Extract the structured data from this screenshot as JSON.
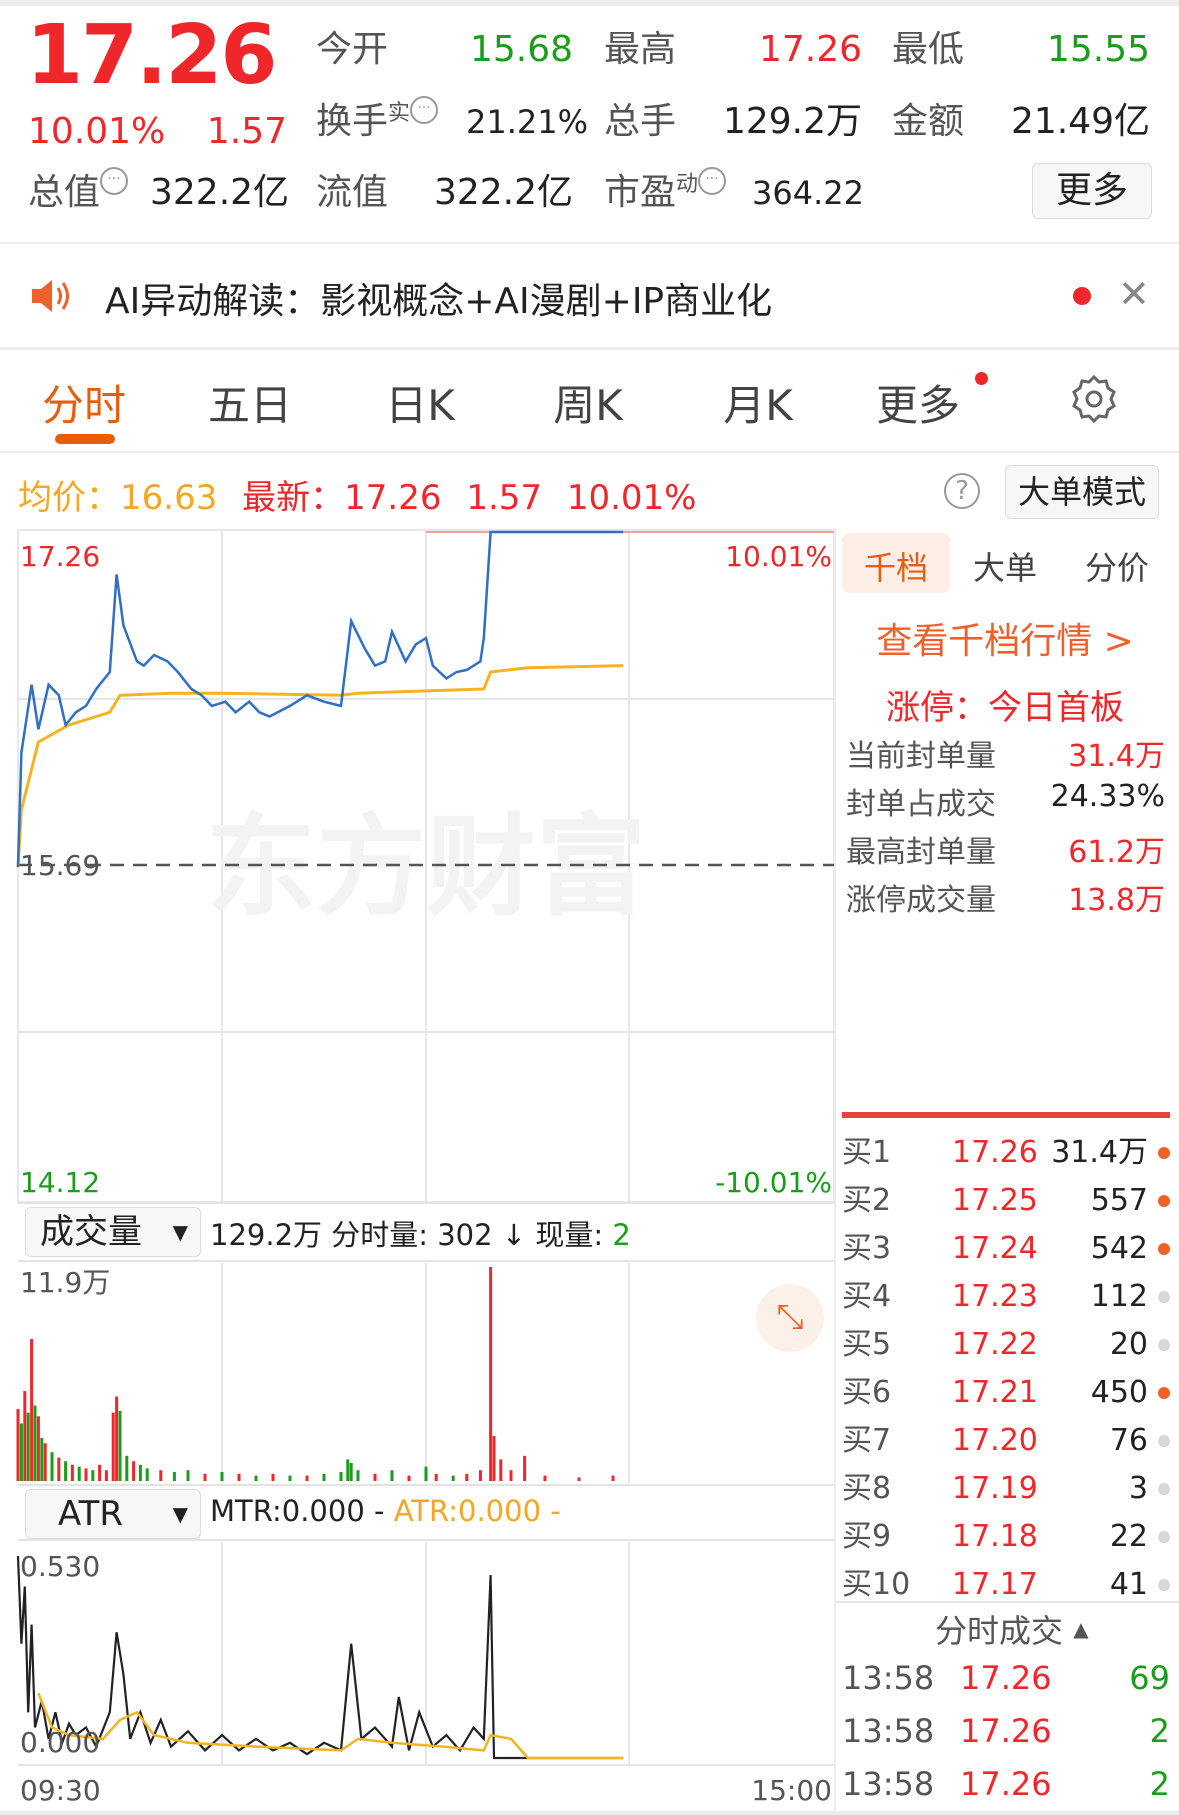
{
  "quote": {
    "price": "17.26",
    "change_pct": "10.01%",
    "change": "1.57",
    "fields": [
      {
        "label": "今开",
        "value": "15.68",
        "color": "green"
      },
      {
        "label": "最高",
        "value": "17.26",
        "color": "red"
      },
      {
        "label": "最低",
        "value": "15.55",
        "color": "green"
      },
      {
        "label": "换手",
        "sup": "实",
        "value": "21.21%",
        "color": "dark"
      },
      {
        "label": "总手",
        "value": "129.2万",
        "color": "dark"
      },
      {
        "label": "金额",
        "value": "21.49亿",
        "color": "dark"
      },
      {
        "label": "总值",
        "value": "322.2亿",
        "color": "dark"
      },
      {
        "label": "流值",
        "value": "322.2亿",
        "color": "dark"
      },
      {
        "label": "市盈",
        "sup": "动",
        "value": "364.22",
        "color": "dark"
      }
    ],
    "more_label": "更多"
  },
  "banner": {
    "text": "AI异动解读：影视概念+AI漫剧+IP商业化",
    "icon": "speaker-icon"
  },
  "tabs": [
    {
      "label": "分时",
      "active": true
    },
    {
      "label": "五日"
    },
    {
      "label": "日K"
    },
    {
      "label": "周K"
    },
    {
      "label": "月K"
    },
    {
      "label": "更多"
    }
  ],
  "info": {
    "avg_label": "均价：",
    "avg": "16.63",
    "latest_label": "最新：",
    "latest": "17.26",
    "chg": "1.57",
    "pct": "10.01%",
    "mode_label": "大单模式"
  },
  "colors": {
    "up": "#f0272a",
    "down": "#1a9e1a",
    "accent": "#e85d0c",
    "avg_line": "#f5b324",
    "price_line": "#2f6fc4"
  },
  "side": {
    "tabs": [
      "千档",
      "大单",
      "分价"
    ],
    "link": "查看千档行情 >",
    "limit_up": "涨停：今日首板",
    "stats": [
      {
        "label": "当前封单量",
        "value": "31.4万",
        "color": "red"
      },
      {
        "label": "封单占成交",
        "value": "24.33%",
        "color": "dark"
      },
      {
        "label": "最高封单量",
        "value": "61.2万",
        "color": "red"
      },
      {
        "label": "涨停成交量",
        "value": "13.8万",
        "color": "red"
      }
    ],
    "bids": [
      {
        "label": "买1",
        "price": "17.26",
        "vol": "31.4万",
        "dot": "orange"
      },
      {
        "label": "买2",
        "price": "17.25",
        "vol": "557",
        "dot": "orange"
      },
      {
        "label": "买3",
        "price": "17.24",
        "vol": "542",
        "dot": "orange"
      },
      {
        "label": "买4",
        "price": "17.23",
        "vol": "112",
        "dot": "grey"
      },
      {
        "label": "买5",
        "price": "17.22",
        "vol": "20",
        "dot": "grey"
      },
      {
        "label": "买6",
        "price": "17.21",
        "vol": "450",
        "dot": "orange"
      },
      {
        "label": "买7",
        "price": "17.20",
        "vol": "76",
        "dot": "grey"
      },
      {
        "label": "买8",
        "price": "17.19",
        "vol": "3",
        "dot": "grey"
      },
      {
        "label": "买9",
        "price": "17.18",
        "vol": "22",
        "dot": "grey"
      },
      {
        "label": "买10",
        "price": "17.17",
        "vol": "41",
        "dot": "grey"
      }
    ],
    "trades_title": "分时成交",
    "trades": [
      {
        "time": "13:58",
        "price": "17.26",
        "vol": "69"
      },
      {
        "time": "13:58",
        "price": "17.26",
        "vol": "2"
      },
      {
        "time": "13:58",
        "price": "17.26",
        "vol": "2"
      }
    ]
  },
  "vol_panel": {
    "selector": "成交量",
    "summary": "129.2万 分时量: 302 ↓ 现量: ",
    "now": "2",
    "max_label": "11.9万"
  },
  "atr_panel": {
    "selector": "ATR",
    "mtr": "MTR:0.000 -",
    "atr": "ATR:0.000 -",
    "max_label": "0.530",
    "min_label": "0.000"
  },
  "chart_data": {
    "type": "line",
    "xlabel": "",
    "ylabel": "",
    "x_ticks": [
      "09:30",
      "15:00"
    ],
    "y_left_labels": {
      "top": "17.26",
      "mid": "15.69",
      "bottom": "14.12"
    },
    "y_right_labels": {
      "top": "10.01%",
      "bottom": "-10.01%"
    },
    "ylim": [
      14.12,
      17.26
    ],
    "prev_close": 15.69,
    "grid": true,
    "price": [
      [
        "09:30",
        15.68
      ],
      [
        "09:31",
        16.22
      ],
      [
        "09:34",
        16.54
      ],
      [
        "09:36",
        16.33
      ],
      [
        "09:39",
        16.54
      ],
      [
        "09:42",
        16.49
      ],
      [
        "09:44",
        16.35
      ],
      [
        "09:47",
        16.41
      ],
      [
        "09:50",
        16.44
      ],
      [
        "09:53",
        16.52
      ],
      [
        "09:57",
        16.6
      ],
      [
        "09:59",
        17.06
      ],
      [
        "10:01",
        16.82
      ],
      [
        "10:05",
        16.65
      ],
      [
        "10:07",
        16.63
      ],
      [
        "10:10",
        16.68
      ],
      [
        "10:14",
        16.65
      ],
      [
        "10:17",
        16.6
      ],
      [
        "10:21",
        16.52
      ],
      [
        "10:24",
        16.49
      ],
      [
        "10:27",
        16.44
      ],
      [
        "10:31",
        16.46
      ],
      [
        "10:34",
        16.41
      ],
      [
        "10:38",
        16.46
      ],
      [
        "10:41",
        16.41
      ],
      [
        "10:44",
        16.39
      ],
      [
        "10:50",
        16.44
      ],
      [
        "10:55",
        16.49
      ],
      [
        "11:00",
        16.46
      ],
      [
        "11:05",
        16.44
      ],
      [
        "11:08",
        16.84
      ],
      [
        "11:12",
        16.71
      ],
      [
        "11:15",
        16.63
      ],
      [
        "11:18",
        16.65
      ],
      [
        "11:20",
        16.79
      ],
      [
        "11:24",
        16.65
      ],
      [
        "11:27",
        16.73
      ],
      [
        "11:30",
        16.76
      ],
      [
        "13:02",
        16.63
      ],
      [
        "13:06",
        16.57
      ],
      [
        "13:09",
        16.6
      ],
      [
        "13:12",
        16.61
      ],
      [
        "13:16",
        16.65
      ],
      [
        "13:17",
        16.76
      ],
      [
        "13:19",
        17.26
      ],
      [
        "13:58",
        17.26
      ]
    ],
    "avg": [
      [
        "09:30",
        15.68
      ],
      [
        "09:31",
        15.95
      ],
      [
        "09:36",
        16.27
      ],
      [
        "09:45",
        16.35
      ],
      [
        "09:57",
        16.41
      ],
      [
        "10:00",
        16.49
      ],
      [
        "10:15",
        16.5
      ],
      [
        "10:30",
        16.5
      ],
      [
        "11:05",
        16.49
      ],
      [
        "11:10",
        16.5
      ],
      [
        "13:17",
        16.52
      ],
      [
        "13:19",
        16.6
      ],
      [
        "13:30",
        16.62
      ],
      [
        "13:58",
        16.63
      ]
    ],
    "volume_max": 11.9,
    "volume": [
      [
        "09:30",
        4.0,
        "up"
      ],
      [
        "09:31",
        3.2,
        "down"
      ],
      [
        "09:32",
        5.0,
        "up"
      ],
      [
        "09:33",
        3.8,
        "down"
      ],
      [
        "09:34",
        7.9,
        "up"
      ],
      [
        "09:35",
        4.2,
        "down"
      ],
      [
        "09:36",
        3.6,
        "up"
      ],
      [
        "09:37",
        2.4,
        "down"
      ],
      [
        "09:38",
        2.1,
        "up"
      ],
      [
        "09:40",
        1.6,
        "down"
      ],
      [
        "09:42",
        1.3,
        "up"
      ],
      [
        "09:44",
        1.1,
        "down"
      ],
      [
        "09:46",
        0.9,
        "up"
      ],
      [
        "09:48",
        0.8,
        "down"
      ],
      [
        "09:50",
        0.7,
        "up"
      ],
      [
        "09:52",
        0.6,
        "down"
      ],
      [
        "09:54",
        0.9,
        "up"
      ],
      [
        "09:56",
        0.6,
        "up"
      ],
      [
        "09:58",
        3.8,
        "up"
      ],
      [
        "09:59",
        4.7,
        "up"
      ],
      [
        "10:00",
        3.9,
        "down"
      ],
      [
        "10:02",
        1.4,
        "down"
      ],
      [
        "10:04",
        1.1,
        "up"
      ],
      [
        "10:06",
        0.9,
        "down"
      ],
      [
        "10:08",
        0.7,
        "down"
      ],
      [
        "10:12",
        0.6,
        "up"
      ],
      [
        "10:16",
        0.5,
        "down"
      ],
      [
        "10:20",
        0.6,
        "down"
      ],
      [
        "10:25",
        0.4,
        "up"
      ],
      [
        "10:30",
        0.5,
        "down"
      ],
      [
        "10:35",
        0.4,
        "up"
      ],
      [
        "10:40",
        0.3,
        "down"
      ],
      [
        "10:45",
        0.4,
        "up"
      ],
      [
        "10:50",
        0.3,
        "down"
      ],
      [
        "10:55",
        0.3,
        "up"
      ],
      [
        "11:00",
        0.4,
        "down"
      ],
      [
        "11:05",
        0.5,
        "down"
      ],
      [
        "11:07",
        1.2,
        "green"
      ],
      [
        "11:08",
        1.0,
        "down"
      ],
      [
        "11:10",
        0.6,
        "down"
      ],
      [
        "11:15",
        0.4,
        "up"
      ],
      [
        "11:20",
        0.6,
        "down"
      ],
      [
        "11:25",
        0.3,
        "up"
      ],
      [
        "11:30",
        0.8,
        "down"
      ],
      [
        "13:03",
        0.4,
        "up"
      ],
      [
        "13:08",
        0.3,
        "down"
      ],
      [
        "13:12",
        0.4,
        "up"
      ],
      [
        "13:16",
        0.6,
        "up"
      ],
      [
        "13:19",
        11.9,
        "up"
      ],
      [
        "13:20",
        2.5,
        "up"
      ],
      [
        "13:22",
        1.2,
        "up"
      ],
      [
        "13:25",
        0.6,
        "up"
      ],
      [
        "13:29",
        1.4,
        "up"
      ],
      [
        "13:35",
        0.3,
        "up"
      ],
      [
        "13:45",
        0.2,
        "up"
      ],
      [
        "13:55",
        0.3,
        "up"
      ]
    ],
    "atr_max": 0.53,
    "atr": [
      [
        "09:30",
        0.53
      ],
      [
        "09:31",
        0.3
      ],
      [
        "09:32",
        0.45
      ],
      [
        "09:33",
        0.12
      ],
      [
        "09:34",
        0.35
      ],
      [
        "09:35",
        0.08
      ],
      [
        "09:37",
        0.15
      ],
      [
        "09:39",
        0.05
      ],
      [
        "09:41",
        0.12
      ],
      [
        "09:43",
        0.04
      ],
      [
        "09:45",
        0.09
      ],
      [
        "09:47",
        0.06
      ],
      [
        "09:50",
        0.08
      ],
      [
        "09:53",
        0.03
      ],
      [
        "09:57",
        0.12
      ],
      [
        "09:59",
        0.33
      ],
      [
        "10:01",
        0.22
      ],
      [
        "10:03",
        0.05
      ],
      [
        "10:06",
        0.12
      ],
      [
        "10:09",
        0.04
      ],
      [
        "10:12",
        0.1
      ],
      [
        "10:15",
        0.03
      ],
      [
        "10:20",
        0.07
      ],
      [
        "10:25",
        0.02
      ],
      [
        "10:30",
        0.06
      ],
      [
        "10:35",
        0.02
      ],
      [
        "10:40",
        0.05
      ],
      [
        "10:45",
        0.02
      ],
      [
        "10:50",
        0.04
      ],
      [
        "10:55",
        0.01
      ],
      [
        "11:00",
        0.04
      ],
      [
        "11:05",
        0.02
      ],
      [
        "11:08",
        0.3
      ],
      [
        "11:11",
        0.05
      ],
      [
        "11:15",
        0.08
      ],
      [
        "11:20",
        0.03
      ],
      [
        "11:22",
        0.16
      ],
      [
        "11:25",
        0.02
      ],
      [
        "11:28",
        0.12
      ],
      [
        "13:02",
        0.03
      ],
      [
        "13:06",
        0.06
      ],
      [
        "13:10",
        0.02
      ],
      [
        "13:14",
        0.08
      ],
      [
        "13:17",
        0.05
      ],
      [
        "13:19",
        0.48
      ],
      [
        "13:20",
        0.0
      ],
      [
        "13:58",
        0.0
      ]
    ],
    "atr_avg": [
      [
        "09:36",
        0.17
      ],
      [
        "09:40",
        0.08
      ],
      [
        "09:45",
        0.06
      ],
      [
        "09:55",
        0.05
      ],
      [
        "10:00",
        0.1
      ],
      [
        "10:05",
        0.12
      ],
      [
        "10:10",
        0.06
      ],
      [
        "10:20",
        0.04
      ],
      [
        "10:40",
        0.03
      ],
      [
        "11:05",
        0.02
      ],
      [
        "11:10",
        0.05
      ],
      [
        "11:20",
        0.04
      ],
      [
        "13:05",
        0.03
      ],
      [
        "13:17",
        0.02
      ],
      [
        "13:19",
        0.06
      ],
      [
        "13:25",
        0.05
      ],
      [
        "13:30",
        0.0
      ],
      [
        "13:58",
        0.0
      ]
    ]
  }
}
